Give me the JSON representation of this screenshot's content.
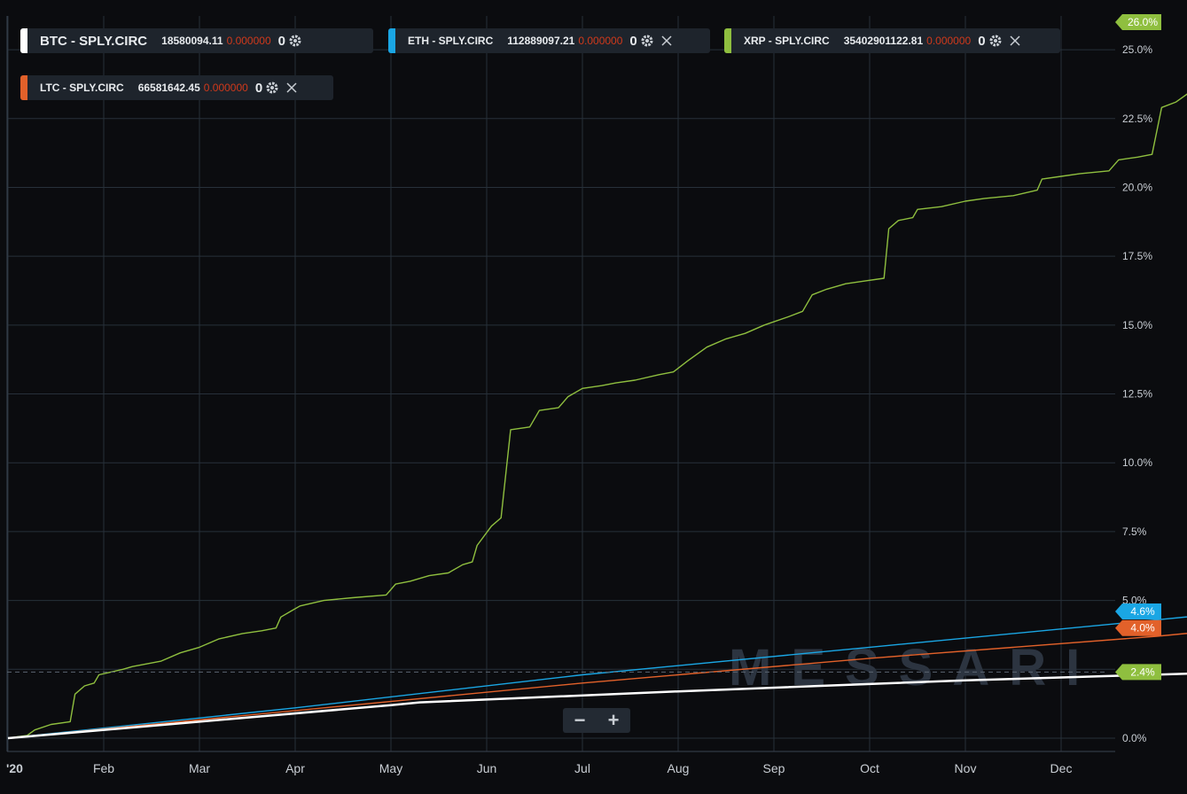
{
  "legend": [
    {
      "name": "BTC - SPLY.CIRC",
      "value": "18580094.11",
      "change": "0.000000",
      "count": "0",
      "color": "#ffffff",
      "closable": false
    },
    {
      "name": "ETH - SPLY.CIRC",
      "value": "112889097.21",
      "change": "0.000000",
      "count": "0",
      "color": "#1aa6e4",
      "closable": true
    },
    {
      "name": "XRP - SPLY.CIRC",
      "value": "35402901122.81",
      "change": "0.000000",
      "count": "0",
      "color": "#8fbf3f",
      "closable": true
    },
    {
      "name": "LTC - SPLY.CIRC",
      "value": "66581642.45",
      "change": "0.000000",
      "count": "0",
      "color": "#e2612a",
      "closable": true
    }
  ],
  "watermark": "MESSARI",
  "zoom": {
    "minus": "−",
    "plus": "+"
  },
  "colors": {
    "background": "#0b0c0f",
    "grid": "#27303a",
    "axis_text": "#c9ced4"
  },
  "chart_data": {
    "type": "line",
    "x_ticks": [
      "'20",
      "Feb",
      "Mar",
      "Apr",
      "May",
      "Jun",
      "Jul",
      "Aug",
      "Sep",
      "Oct",
      "Nov",
      "Dec"
    ],
    "y_ticks": [
      "0.0%",
      "2.5%",
      "5.0%",
      "7.5%",
      "10.0%",
      "12.5%",
      "15.0%",
      "17.5%",
      "20.0%",
      "22.5%",
      "25.0%"
    ],
    "ylim": [
      0,
      26.0
    ],
    "grid": true,
    "x_unit": "months since start of 2020",
    "series": [
      {
        "name": "XRP - SPLY.CIRC",
        "color": "#8fbf3f",
        "last_label": "26.0%",
        "points": [
          [
            0,
            0
          ],
          [
            0.2,
            0.1
          ],
          [
            0.28,
            0.3
          ],
          [
            0.45,
            0.5
          ],
          [
            0.65,
            0.6
          ],
          [
            0.7,
            1.6
          ],
          [
            0.8,
            1.9
          ],
          [
            0.9,
            2.0
          ],
          [
            0.95,
            2.3
          ],
          [
            1.2,
            2.5
          ],
          [
            1.3,
            2.6
          ],
          [
            1.6,
            2.8
          ],
          [
            1.8,
            3.1
          ],
          [
            2.0,
            3.3
          ],
          [
            2.2,
            3.6
          ],
          [
            2.45,
            3.8
          ],
          [
            2.65,
            3.9
          ],
          [
            2.8,
            4.0
          ],
          [
            2.85,
            4.4
          ],
          [
            2.95,
            4.6
          ],
          [
            3.05,
            4.8
          ],
          [
            3.3,
            5.0
          ],
          [
            3.6,
            5.1
          ],
          [
            3.95,
            5.2
          ],
          [
            4.05,
            5.6
          ],
          [
            4.2,
            5.7
          ],
          [
            4.4,
            5.9
          ],
          [
            4.6,
            6.0
          ],
          [
            4.75,
            6.3
          ],
          [
            4.85,
            6.4
          ],
          [
            4.9,
            7.0
          ],
          [
            5.05,
            7.7
          ],
          [
            5.15,
            8.0
          ],
          [
            5.25,
            11.2
          ],
          [
            5.45,
            11.3
          ],
          [
            5.55,
            11.9
          ],
          [
            5.75,
            12.0
          ],
          [
            5.85,
            12.4
          ],
          [
            6.0,
            12.7
          ],
          [
            6.2,
            12.8
          ],
          [
            6.35,
            12.9
          ],
          [
            6.55,
            13.0
          ],
          [
            6.8,
            13.2
          ],
          [
            6.95,
            13.3
          ],
          [
            7.1,
            13.7
          ],
          [
            7.3,
            14.2
          ],
          [
            7.5,
            14.5
          ],
          [
            7.7,
            14.7
          ],
          [
            7.9,
            15.0
          ],
          [
            8.15,
            15.3
          ],
          [
            8.3,
            15.5
          ],
          [
            8.4,
            16.1
          ],
          [
            8.55,
            16.3
          ],
          [
            8.75,
            16.5
          ],
          [
            8.95,
            16.6
          ],
          [
            9.15,
            16.7
          ],
          [
            9.2,
            18.5
          ],
          [
            9.3,
            18.8
          ],
          [
            9.45,
            18.9
          ],
          [
            9.5,
            19.2
          ],
          [
            9.75,
            19.3
          ],
          [
            10.0,
            19.5
          ],
          [
            10.2,
            19.6
          ],
          [
            10.5,
            19.7
          ],
          [
            10.75,
            19.9
          ],
          [
            10.8,
            20.3
          ],
          [
            11.0,
            20.4
          ],
          [
            11.2,
            20.5
          ],
          [
            11.5,
            20.6
          ],
          [
            11.6,
            21.0
          ],
          [
            11.8,
            21.1
          ],
          [
            11.95,
            21.2
          ],
          [
            12.05,
            22.9
          ],
          [
            12.2,
            23.1
          ],
          [
            12.4,
            23.6
          ],
          [
            12.5,
            25.2
          ],
          [
            12.65,
            25.6
          ],
          [
            12.8,
            25.9
          ],
          [
            12.9,
            26.0
          ]
        ]
      },
      {
        "name": "ETH - SPLY.CIRC",
        "color": "#1aa6e4",
        "last_label": "4.6%",
        "points": [
          [
            0,
            0
          ],
          [
            3.0,
            1.1
          ],
          [
            6.0,
            2.3
          ],
          [
            9.0,
            3.3
          ],
          [
            12.0,
            4.3
          ],
          [
            12.9,
            4.6
          ]
        ]
      },
      {
        "name": "LTC - SPLY.CIRC",
        "color": "#e2612a",
        "last_label": "4.0%",
        "points": [
          [
            0,
            0
          ],
          [
            3.0,
            1.0
          ],
          [
            6.0,
            2.0
          ],
          [
            9.0,
            2.9
          ],
          [
            12.0,
            3.7
          ],
          [
            12.9,
            4.0
          ]
        ]
      },
      {
        "name": "BTC - SPLY.CIRC",
        "color": "#ffffff",
        "last_label": "2.4%",
        "points": [
          [
            0,
            0
          ],
          [
            2.0,
            0.6
          ],
          [
            4.0,
            1.2
          ],
          [
            4.3,
            1.3
          ],
          [
            7.0,
            1.7
          ],
          [
            10.0,
            2.1
          ],
          [
            12.9,
            2.4
          ]
        ]
      }
    ]
  }
}
